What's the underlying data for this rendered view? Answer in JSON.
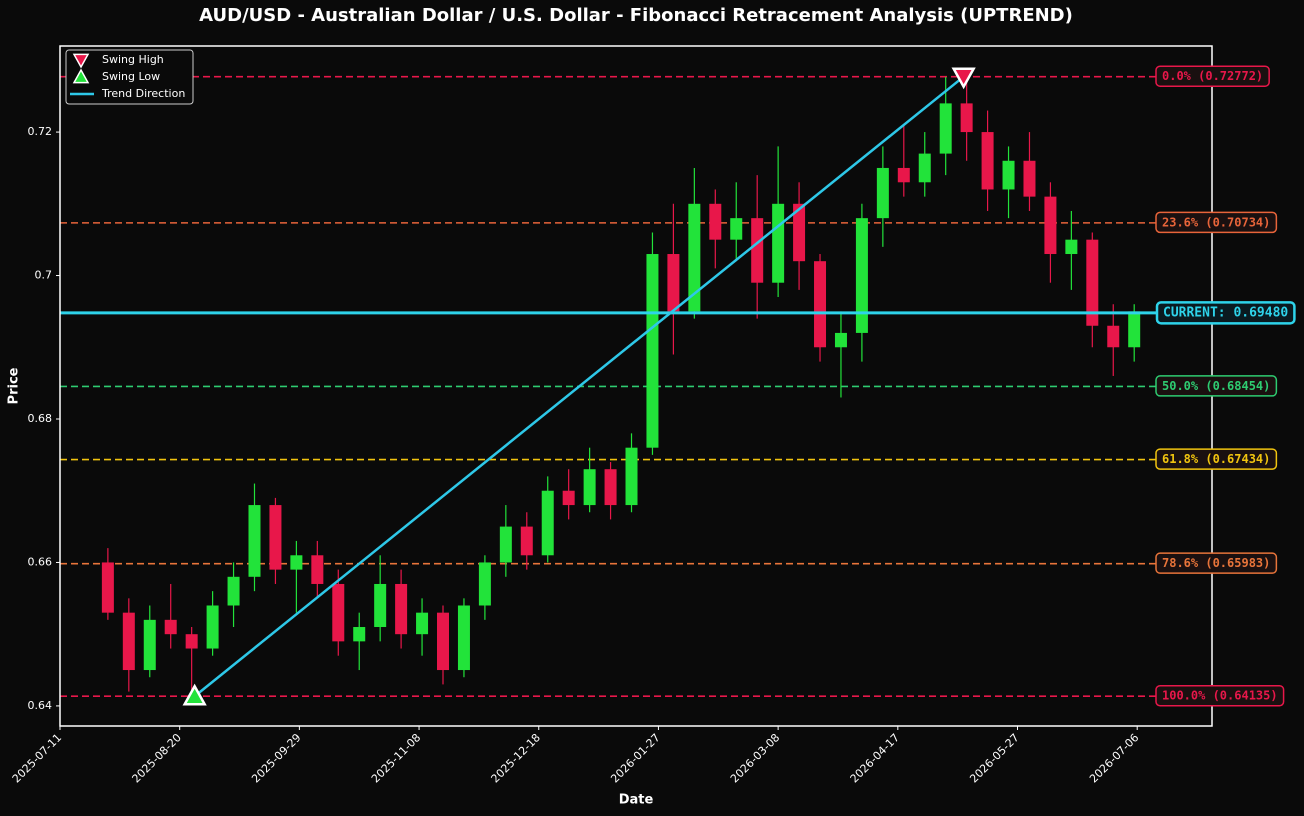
{
  "chart_data": {
    "type": "candlestick",
    "title": "AUD/USD - Australian Dollar / U.S. Dollar - Fibonacci Retracement Analysis (UPTREND)",
    "xlabel": "Date",
    "ylabel": "Price",
    "x": [
      "2025-07-27",
      "2025-08-03",
      "2025-08-10",
      "2025-08-17",
      "2025-08-24",
      "2025-08-31",
      "2025-09-07",
      "2025-09-14",
      "2025-09-21",
      "2025-09-28",
      "2025-10-05",
      "2025-10-12",
      "2025-10-19",
      "2025-10-26",
      "2025-11-02",
      "2025-11-09",
      "2025-11-16",
      "2025-11-23",
      "2025-11-30",
      "2025-12-07",
      "2025-12-14",
      "2025-12-21",
      "2025-12-28",
      "2026-01-04",
      "2026-01-11",
      "2026-01-18",
      "2026-01-25",
      "2026-02-01",
      "2026-02-08",
      "2026-02-15",
      "2026-02-22",
      "2026-03-01",
      "2026-03-08",
      "2026-03-15",
      "2026-03-22",
      "2026-03-29",
      "2026-04-05",
      "2026-04-12",
      "2026-04-19",
      "2026-04-26",
      "2026-05-03",
      "2026-05-10",
      "2026-05-17",
      "2026-05-24",
      "2026-05-31",
      "2026-06-07",
      "2026-06-14",
      "2026-06-21",
      "2026-06-28",
      "2026-07-05"
    ],
    "open": [
      0.66,
      0.653,
      0.645,
      0.652,
      0.65,
      0.648,
      0.654,
      0.658,
      0.668,
      0.659,
      0.661,
      0.657,
      0.649,
      0.651,
      0.657,
      0.65,
      0.653,
      0.645,
      0.654,
      0.66,
      0.665,
      0.661,
      0.67,
      0.668,
      0.673,
      0.668,
      0.676,
      0.703,
      0.695,
      0.71,
      0.705,
      0.708,
      0.699,
      0.71,
      0.702,
      0.69,
      0.692,
      0.708,
      0.715,
      0.713,
      0.717,
      0.724,
      0.72,
      0.712,
      0.716,
      0.711,
      0.703,
      0.705,
      0.693,
      0.69
    ],
    "high": [
      0.662,
      0.655,
      0.654,
      0.657,
      0.651,
      0.656,
      0.66,
      0.671,
      0.669,
      0.663,
      0.663,
      0.659,
      0.653,
      0.661,
      0.659,
      0.655,
      0.654,
      0.655,
      0.661,
      0.668,
      0.667,
      0.672,
      0.673,
      0.676,
      0.674,
      0.678,
      0.706,
      0.71,
      0.715,
      0.712,
      0.713,
      0.714,
      0.718,
      0.713,
      0.703,
      0.695,
      0.71,
      0.718,
      0.721,
      0.72,
      0.7277,
      0.728,
      0.723,
      0.718,
      0.72,
      0.713,
      0.709,
      0.706,
      0.696,
      0.696
    ],
    "low": [
      0.652,
      0.642,
      0.644,
      0.648,
      0.6414,
      0.647,
      0.651,
      0.656,
      0.657,
      0.653,
      0.655,
      0.647,
      0.645,
      0.649,
      0.648,
      0.647,
      0.643,
      0.644,
      0.652,
      0.658,
      0.659,
      0.66,
      0.666,
      0.667,
      0.666,
      0.667,
      0.675,
      0.689,
      0.694,
      0.701,
      0.702,
      0.694,
      0.697,
      0.698,
      0.688,
      0.683,
      0.688,
      0.704,
      0.711,
      0.711,
      0.714,
      0.716,
      0.709,
      0.708,
      0.709,
      0.699,
      0.698,
      0.69,
      0.686,
      0.688
    ],
    "close": [
      0.653,
      0.645,
      0.652,
      0.65,
      0.648,
      0.654,
      0.658,
      0.668,
      0.659,
      0.661,
      0.657,
      0.649,
      0.651,
      0.657,
      0.65,
      0.653,
      0.645,
      0.654,
      0.66,
      0.665,
      0.661,
      0.67,
      0.668,
      0.673,
      0.668,
      0.676,
      0.703,
      0.695,
      0.71,
      0.705,
      0.708,
      0.699,
      0.71,
      0.702,
      0.69,
      0.692,
      0.708,
      0.715,
      0.713,
      0.717,
      0.724,
      0.72,
      0.712,
      0.716,
      0.711,
      0.703,
      0.705,
      0.693,
      0.69,
      0.695
    ],
    "up_color": "#22e33a",
    "down_color": "#e8174a",
    "xlim": [
      "2025-07-11",
      "2026-07-31"
    ],
    "xticks": [
      "2025-07-11",
      "2025-08-20",
      "2025-09-29",
      "2025-11-08",
      "2025-12-18",
      "2026-01-27",
      "2026-03-08",
      "2026-04-17",
      "2026-05-27",
      "2026-07-06"
    ],
    "ylim": [
      0.6372,
      0.732
    ],
    "yticks": [
      0.64,
      0.66,
      0.68,
      0.7,
      0.72
    ],
    "fib_levels": [
      {
        "label": "0.0% (0.72772)",
        "value": 0.72772,
        "color": "#e8174a"
      },
      {
        "label": "23.6% (0.70734)",
        "value": 0.70734,
        "color": "#e8643a"
      },
      {
        "label": "50.0% (0.68454)",
        "value": 0.68454,
        "color": "#2ecc71"
      },
      {
        "label": "61.8% (0.67434)",
        "value": 0.67434,
        "color": "#f1c40f"
      },
      {
        "label": "78.6% (0.65983)",
        "value": 0.65983,
        "color": "#e8743a"
      },
      {
        "label": "100.0% (0.64135)",
        "value": 0.64135,
        "color": "#e8174a"
      }
    ],
    "current": {
      "label": "CURRENT: 0.69480",
      "value": 0.6948,
      "color": "#2ed3ea"
    },
    "swing_high": {
      "name": "Swing High",
      "date": "2026-05-09",
      "value": 0.72772,
      "color": "#e8174a"
    },
    "swing_low": {
      "name": "Swing Low",
      "date": "2025-08-25",
      "value": 0.64135,
      "color": "#22e33a"
    },
    "trend": {
      "name": "Trend Direction",
      "color": "#2ec8e8"
    }
  }
}
